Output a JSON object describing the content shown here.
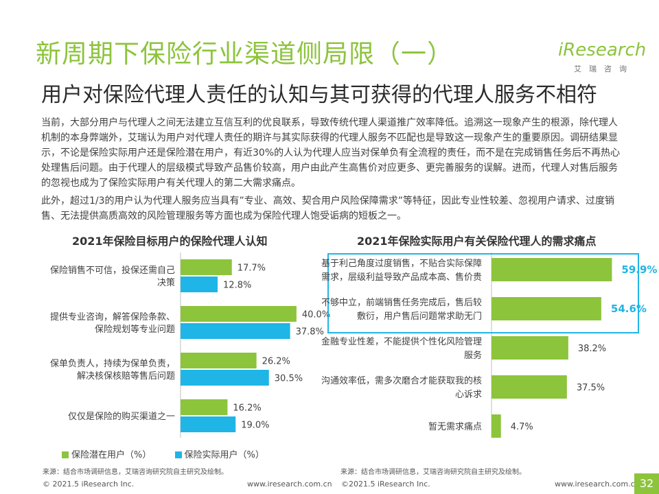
{
  "header": {
    "title": "新周期下保险行业渠道侧局限（一）",
    "subtitle": "用户对保险代理人责任的认知与其可获得的代理人服务不相符"
  },
  "logo": {
    "wordmark": "iResearch",
    "cn": "艾瑞咨询"
  },
  "body": {
    "p1": "当前，大部分用户与代理人之间无法建立互信互利的优良联系，导致传统代理人渠道推广效率降低。追溯这一现象产生的根源，除代理人机制的本身弊端外，艾瑞认为用户对代理人责任的期许与其实际获得的代理人服务不匹配也是导致这一现象产生的重要原因。调研结果显示，不论是保险实际用户还是保险潜在用户，有近30%的人认为代理人应当对保单负有全流程的责任，而不是在完成销售任务后不再热心处理售后问题。由于代理人的层级模式导致产品售价较高，用户由此产生高售价对应更多、更完善服务的误解。进而，代理人对售后服务的忽视也成为了保险实际用户有关代理人的第二大需求痛点。",
    "p2": "此外，超过1/3的用户认为代理人服务应当具有”专业、高效、契合用户风险保障需求”等特征，因此专业性较差、忽视用户请求、过度销售、无法提供高质高效的风险管理服务等方面也成为保险代理人饱受诟病的短板之一。"
  },
  "chart_data": [
    {
      "type": "bar",
      "orientation": "horizontal",
      "title": "2021年保险目标用户的保险代理人认知",
      "categories": [
        [
          "保险销售不可信，投保还需自己",
          "决策"
        ],
        [
          "提供专业咨询，解答保险条款、",
          "保险规划等专业问题"
        ],
        [
          "保单负责人，持续为保单负责，",
          "解决核保核赔等售后问题"
        ],
        [
          "仅仅是保险的购买渠道之一"
        ]
      ],
      "series": [
        {
          "name": "保险潜在用户（%）",
          "color": "#8cc43c",
          "values": [
            17.7,
            40.0,
            26.2,
            16.2
          ],
          "labels": [
            "17.7%",
            "40.0%",
            "26.2%",
            "16.2%"
          ]
        },
        {
          "name": "保险实际用户（%）",
          "color": "#1fb5e6",
          "values": [
            12.8,
            37.8,
            30.5,
            19.0
          ],
          "labels": [
            "12.8%",
            "37.8%",
            "30.5%",
            "19.0%"
          ]
        }
      ],
      "xlim": [
        0,
        45
      ],
      "legend": "bottom",
      "source": "来源：结合市场调研信息，艾瑞咨询研究院自主研究及绘制。"
    },
    {
      "type": "bar",
      "orientation": "horizontal",
      "title": "2021年保险实际用户有关保险代理人的需求痛点",
      "categories": [
        [
          "基于利己角度过度销售，不贴合实际保障",
          "需求，层级利益导致产品成本高、售价贵"
        ],
        [
          "不够中立，前端销售任务完成后，售后较",
          "敷衍，用户售后问题常求助无门"
        ],
        [
          "金融专业性差，不能提供个性化风险管理",
          "服务"
        ],
        [
          "沟通效率低，需多次磨合才能获取我的核",
          "心诉求"
        ],
        [
          "暂无需求痛点"
        ]
      ],
      "series": [
        {
          "name": "保险实际用户",
          "color": "#8cc43c",
          "values": [
            59.9,
            54.6,
            38.2,
            37.5,
            4.7
          ],
          "labels": [
            "59.9%",
            "54.6%",
            "38.2%",
            "37.5%",
            "4.7%"
          ]
        }
      ],
      "highlighted": [
        0,
        1
      ],
      "xlim": [
        0,
        70
      ],
      "source": "来源：结合市场调研信息，艾瑞咨询研究院自主研究及绘制。"
    }
  ],
  "footer": {
    "copyright_left": "© 2021.5 iResearch Inc.",
    "url_left": "www.iresearch.com.cn",
    "copyright_right": "©2021.5 iResearch Inc.",
    "url_right": "www.iresearch.com.cn",
    "page": "32"
  },
  "colors": {
    "accent": "#8cc43c",
    "blue": "#1fb5e6"
  }
}
